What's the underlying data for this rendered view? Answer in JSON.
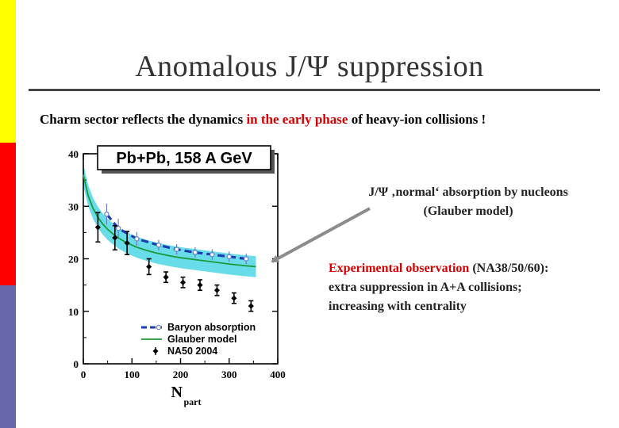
{
  "slide": {
    "title": "Anomalous J/Ψ suppression",
    "subtitle": {
      "before": "Charm sector reflects the dynamics ",
      "highlight": "in the early phase",
      "after": " of heavy-ion collisions !"
    },
    "annotation_top": {
      "line1": "J/Ψ ‚normal‘ absorption by nucleons",
      "line2": "(Glauber model)"
    },
    "annotation_bottom": {
      "line1_red": "Experimental observation",
      "line1_rest": " (NA38/50/60):",
      "line2": "extra suppression in A+A collisions;",
      "line3": "increasing with centrality"
    },
    "colors": {
      "stripe_top": "#ffff00",
      "stripe_mid": "#ff0000",
      "stripe_bottom": "#6666aa",
      "highlight": "#d40000",
      "band": "#4fd6e6",
      "glauber": "#1a9a3a",
      "baryon": "#1a3fb0",
      "arrow": "#8c8c8c"
    }
  },
  "chart_data": {
    "type": "scatter",
    "title": "Pb+Pb, 158 A GeV",
    "xlabel": "N",
    "xlabel_sub": "part",
    "ylabel": "",
    "xlim": [
      0,
      400
    ],
    "ylim": [
      0,
      40
    ],
    "xticks": [
      0,
      100,
      200,
      300,
      400
    ],
    "yticks": [
      0,
      10,
      20,
      30,
      40
    ],
    "grid": false,
    "legend_position": "bottom-right",
    "legend": [
      "Baryon absorption",
      "Glauber model",
      "NA50 2004"
    ],
    "series": [
      {
        "name": "NA50 2004",
        "kind": "points",
        "x": [
          30,
          65,
          90,
          135,
          170,
          205,
          240,
          275,
          310,
          345
        ],
        "y": [
          26.0,
          24.0,
          23.0,
          18.5,
          16.5,
          15.5,
          15.0,
          14.0,
          12.5,
          11.0
        ],
        "err": [
          2.8,
          2.3,
          2.2,
          1.5,
          1.0,
          1.0,
          1.0,
          1.0,
          1.0,
          1.0
        ]
      },
      {
        "name": "Baryon absorption",
        "kind": "points-line",
        "x": [
          48,
          72,
          110,
          155,
          192,
          230,
          265,
          300,
          335
        ],
        "y": [
          28.5,
          25.8,
          23.8,
          22.6,
          21.8,
          21.2,
          20.8,
          20.4,
          20.0
        ],
        "err": [
          2.0,
          1.8,
          1.3,
          1.0,
          1.0,
          1.0,
          1.0,
          1.0,
          1.0
        ]
      },
      {
        "name": "Glauber model",
        "kind": "line-band",
        "x": [
          0,
          10,
          20,
          30,
          40,
          50,
          60,
          75,
          90,
          110,
          130,
          150,
          175,
          200,
          225,
          250,
          275,
          300,
          330,
          355
        ],
        "y": [
          36.0,
          32.0,
          29.6,
          27.9,
          26.6,
          25.6,
          24.8,
          23.8,
          23.0,
          22.2,
          21.6,
          21.1,
          20.6,
          20.2,
          19.9,
          19.6,
          19.3,
          19.0,
          18.7,
          18.5
        ],
        "band_halfwidth": 2.0
      }
    ]
  }
}
